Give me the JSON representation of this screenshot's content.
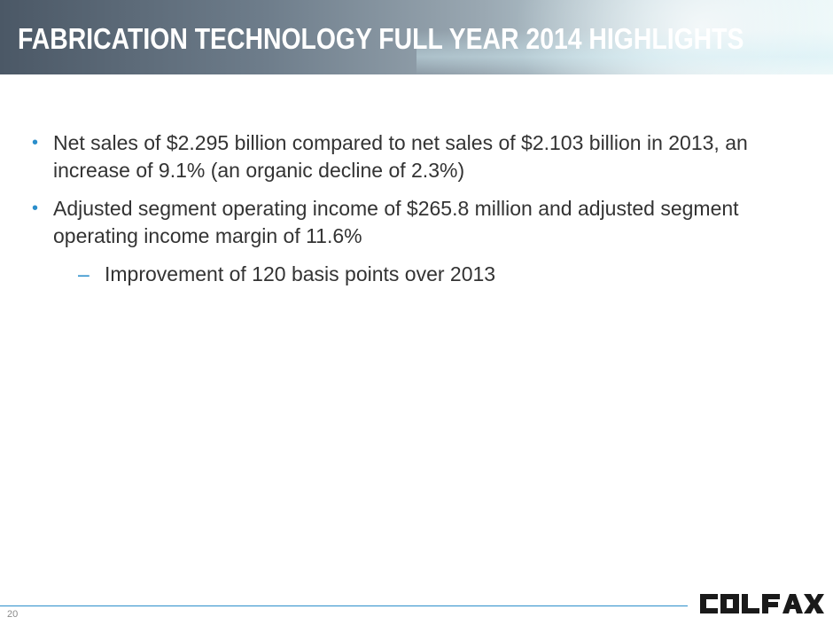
{
  "slide": {
    "title": "FABRICATION TECHNOLOGY FULL YEAR 2014 HIGHLIGHTS",
    "bullets": [
      {
        "marker": "•",
        "text": "Net sales of $2.295 billion compared to net sales of $2.103 billion in 2013, an increase of 9.1% (an organic decline of 2.3%)"
      },
      {
        "marker": "•",
        "text": "Adjusted segment operating income of $265.8 million and adjusted segment operating income margin of 11.6%"
      }
    ],
    "sub_bullets": [
      {
        "marker": "–",
        "text": "Improvement of 120 basis points over 2013"
      }
    ],
    "page_number": "20",
    "logo": {
      "text": "COLFAX",
      "color": "#1a1a1a"
    }
  },
  "colors": {
    "accent": "#2b8ecb",
    "body_text": "#333333",
    "title_text": "#ffffff"
  }
}
